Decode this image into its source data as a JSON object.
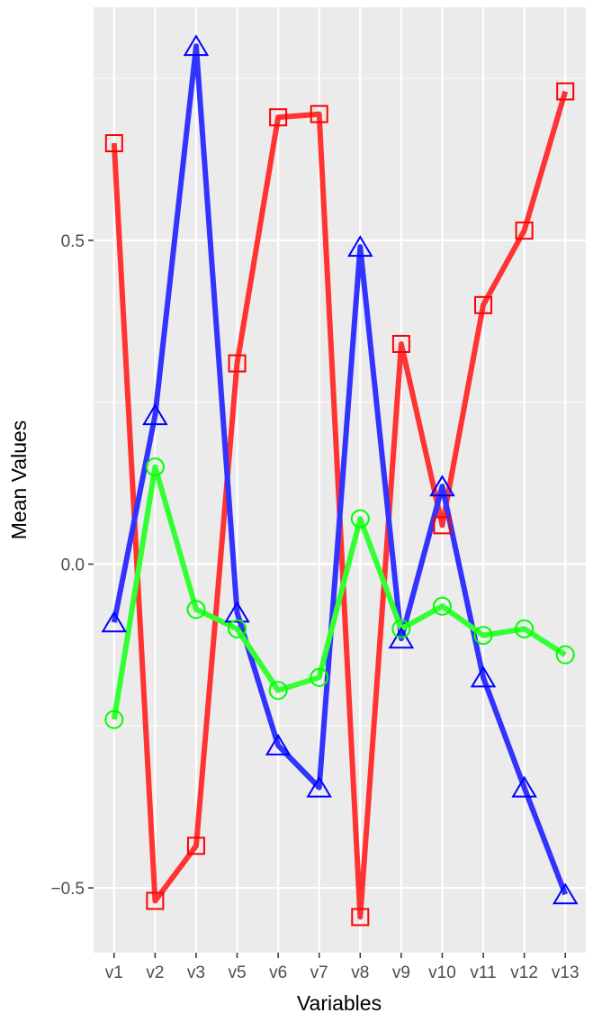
{
  "chart_data": {
    "type": "line",
    "title": "",
    "xlabel": "Variables",
    "ylabel": "Mean Values",
    "categories": [
      "v1",
      "v2",
      "v3",
      "v5",
      "v6",
      "v7",
      "v8",
      "v9",
      "v10",
      "v11",
      "v12",
      "v13"
    ],
    "ylim": [
      -0.6,
      0.86
    ],
    "yticks": [
      -0.5,
      0.0,
      0.5
    ],
    "ytick_labels": [
      "−0.5",
      "0.0",
      "0.5"
    ],
    "grid": true,
    "legend": "none",
    "series": [
      {
        "color": "#ff3333",
        "marker": "square",
        "values": [
          0.65,
          -0.52,
          -0.435,
          0.31,
          0.69,
          0.695,
          -0.545,
          0.34,
          0.06,
          0.4,
          0.515,
          0.73
        ]
      },
      {
        "color": "#3333ff",
        "marker": "triangle",
        "values": [
          -0.09,
          0.23,
          0.8,
          -0.075,
          -0.28,
          -0.345,
          0.49,
          -0.115,
          0.12,
          -0.175,
          -0.345,
          -0.51
        ]
      },
      {
        "color": "#33ff33",
        "marker": "circle",
        "values": [
          -0.24,
          0.15,
          -0.07,
          -0.1,
          -0.195,
          -0.175,
          0.07,
          -0.1,
          -0.065,
          -0.11,
          -0.1,
          -0.14
        ]
      }
    ]
  }
}
